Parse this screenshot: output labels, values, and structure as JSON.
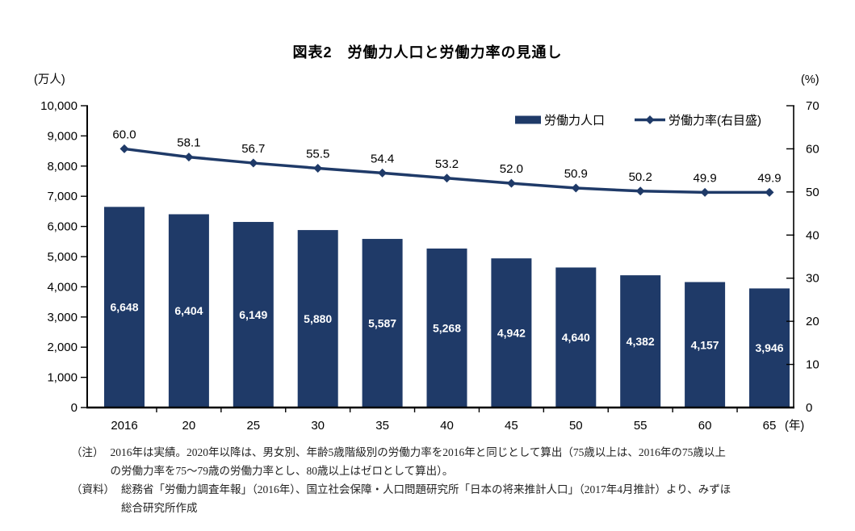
{
  "title": "図表2　労働力人口と労働力率の見通し",
  "legend": {
    "bar_label": "労働力人口",
    "line_label": "労働力率(右目盛)"
  },
  "colors": {
    "navy": "#1f3a68",
    "axis": "#000000",
    "bar_label_text": "#ffffff",
    "label_text": "#000000",
    "note_text": "#222222"
  },
  "notes": [
    {
      "label": "（注）",
      "lines": [
        "2016年は実績。2020年以降は、男女別、年齢5歳階級別の労働力率を2016年と同じとして算出（75歳以上は、2016年の75歳以上",
        "の労働力率を75～79歳の労働力率とし、80歳以上はゼロとして算出）。"
      ]
    },
    {
      "label": "（資料）",
      "lines": [
        "総務省「労働力調査年報」（2016年）、国立社会保障・人口問題研究所「日本の将来推計人口」（2017年4月推計）より、みずほ",
        "総合研究所作成"
      ]
    }
  ],
  "chart_data": {
    "type": "bar",
    "title": "図表2　労働力人口と労働力率の見通し",
    "categories": [
      "2016",
      "20",
      "25",
      "30",
      "35",
      "40",
      "45",
      "50",
      "55",
      "60",
      "65"
    ],
    "x_unit": "(年)",
    "series": [
      {
        "name": "労働力人口",
        "type": "bar",
        "axis": "left",
        "values": [
          6648,
          6404,
          6149,
          5880,
          5587,
          5268,
          4942,
          4640,
          4382,
          4157,
          3946
        ],
        "labels": [
          "6,648",
          "6,404",
          "6,149",
          "5,880",
          "5,587",
          "5,268",
          "4,942",
          "4,640",
          "4,382",
          "4,157",
          "3,946"
        ]
      },
      {
        "name": "労働力率(右目盛)",
        "type": "line",
        "axis": "right",
        "values": [
          60.0,
          58.1,
          56.7,
          55.5,
          54.4,
          53.2,
          52.0,
          50.9,
          50.2,
          49.9,
          49.9
        ],
        "labels": [
          "60.0",
          "58.1",
          "56.7",
          "55.5",
          "54.4",
          "53.2",
          "52.0",
          "50.9",
          "50.2",
          "49.9",
          "49.9"
        ]
      }
    ],
    "left_axis": {
      "unit": "(万人)",
      "min": 0,
      "max": 10000,
      "step": 1000,
      "tick_labels": [
        "0",
        "1,000",
        "2,000",
        "3,000",
        "4,000",
        "5,000",
        "6,000",
        "7,000",
        "8,000",
        "9,000",
        "10,000"
      ]
    },
    "right_axis": {
      "unit": "(%)",
      "min": 0,
      "max": 70,
      "step": 10,
      "tick_labels": [
        "0",
        "10",
        "20",
        "30",
        "40",
        "50",
        "60",
        "70"
      ]
    },
    "grid": false,
    "legend_position": "top-right-inside"
  }
}
